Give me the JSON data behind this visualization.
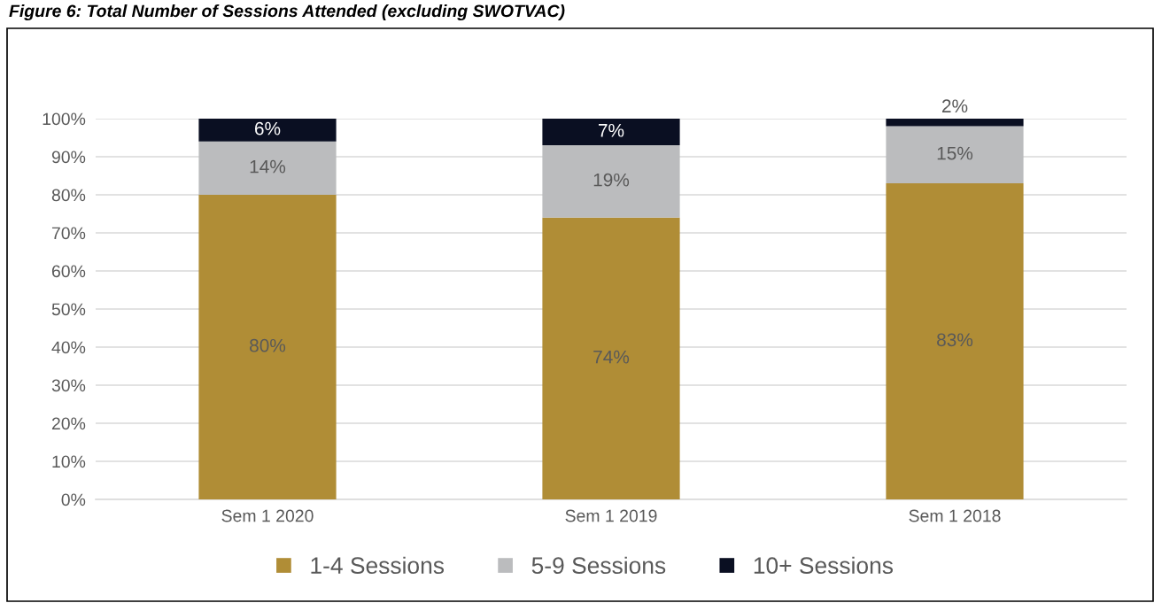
{
  "chart_data": {
    "type": "bar",
    "stacked": true,
    "title": "Figure 6: Total Number of Sessions Attended (excluding SWOTVAC)",
    "categories": [
      "Sem 1 2020",
      "Sem 1 2019",
      "Sem 1 2018"
    ],
    "series": [
      {
        "name": "1-4 Sessions",
        "color": "#b08d36",
        "values": [
          80,
          74,
          83
        ],
        "value_labels": [
          "80%",
          "74%",
          "83%"
        ]
      },
      {
        "name": "5-9 Sessions",
        "color": "#bbbcbe",
        "values": [
          14,
          19,
          15
        ],
        "value_labels": [
          "14%",
          "19%",
          "15%"
        ]
      },
      {
        "name": "10+ Sessions",
        "color": "#0a0f22",
        "values": [
          6,
          7,
          2
        ],
        "value_labels": [
          "6%",
          "7%",
          "2%"
        ]
      }
    ],
    "ylim": [
      0,
      100
    ],
    "yticks": [
      {
        "value": 0,
        "label": "0%"
      },
      {
        "value": 10,
        "label": "10%"
      },
      {
        "value": 20,
        "label": "20%"
      },
      {
        "value": 30,
        "label": "30%"
      },
      {
        "value": 40,
        "label": "40%"
      },
      {
        "value": 50,
        "label": "50%"
      },
      {
        "value": 60,
        "label": "60%"
      },
      {
        "value": 70,
        "label": "70%"
      },
      {
        "value": 80,
        "label": "80%"
      },
      {
        "value": 90,
        "label": "90%"
      },
      {
        "value": 100,
        "label": "100%"
      }
    ],
    "grid": "y",
    "legend": "bottom"
  }
}
